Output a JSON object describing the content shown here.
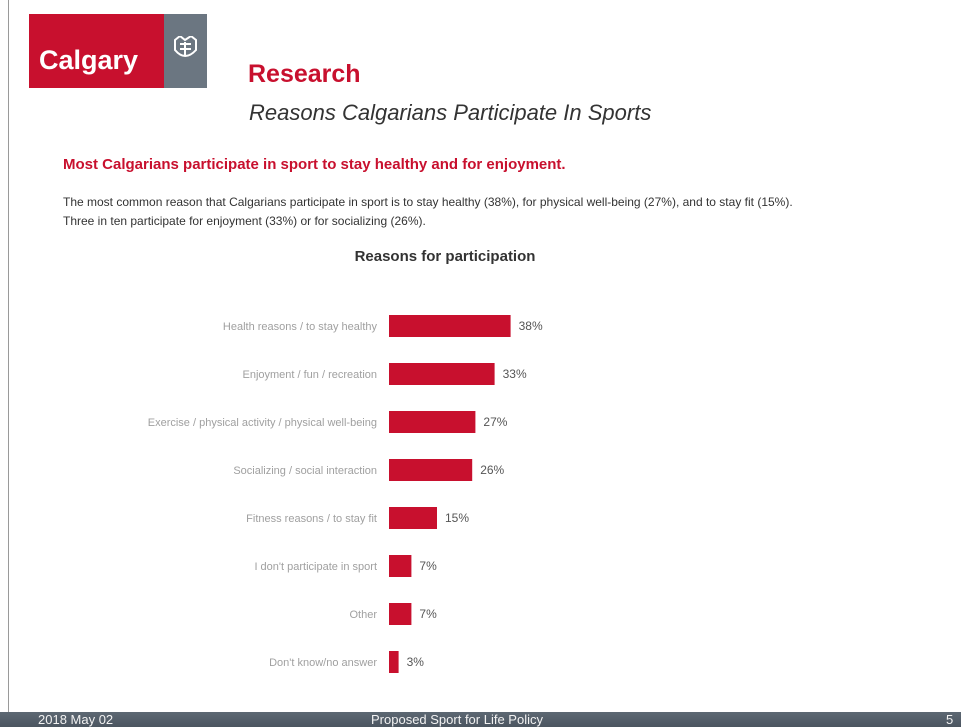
{
  "logo": {
    "text": "Calgary",
    "emblem": "city-crest-icon"
  },
  "header": {
    "title": "Research",
    "subtitle": "Reasons Calgarians Participate In Sports"
  },
  "headline": "Most Calgarians participate in sport to stay healthy and for enjoyment.",
  "body": "The most common reason that Calgarians participate in sport is to stay healthy (38%), for physical well-being (27%), and to stay fit (15%). Three in ten participate for enjoyment (33%) or for socializing (26%).",
  "colors": {
    "brand_red": "#c8102e",
    "footer_gray": "#56606b"
  },
  "chart_data": {
    "type": "bar",
    "orientation": "horizontal",
    "title": "Reasons for participation",
    "categories": [
      "Health reasons / to stay healthy",
      "Enjoyment / fun / recreation",
      "Exercise / physical activity / physical well-being",
      "Socializing / social interaction",
      "Fitness reasons / to stay fit",
      "I don't participate in sport",
      "Other",
      "Don't know/no answer"
    ],
    "values": [
      38,
      33,
      27,
      26,
      15,
      7,
      7,
      3
    ],
    "value_labels": [
      "38%",
      "33%",
      "27%",
      "26%",
      "15%",
      "7%",
      "7%",
      "3%"
    ],
    "unit": "%",
    "color": "#c8102e"
  },
  "footer": {
    "date": "2018 May 02",
    "doc_title": "Proposed Sport for Life Policy",
    "page": "5"
  }
}
